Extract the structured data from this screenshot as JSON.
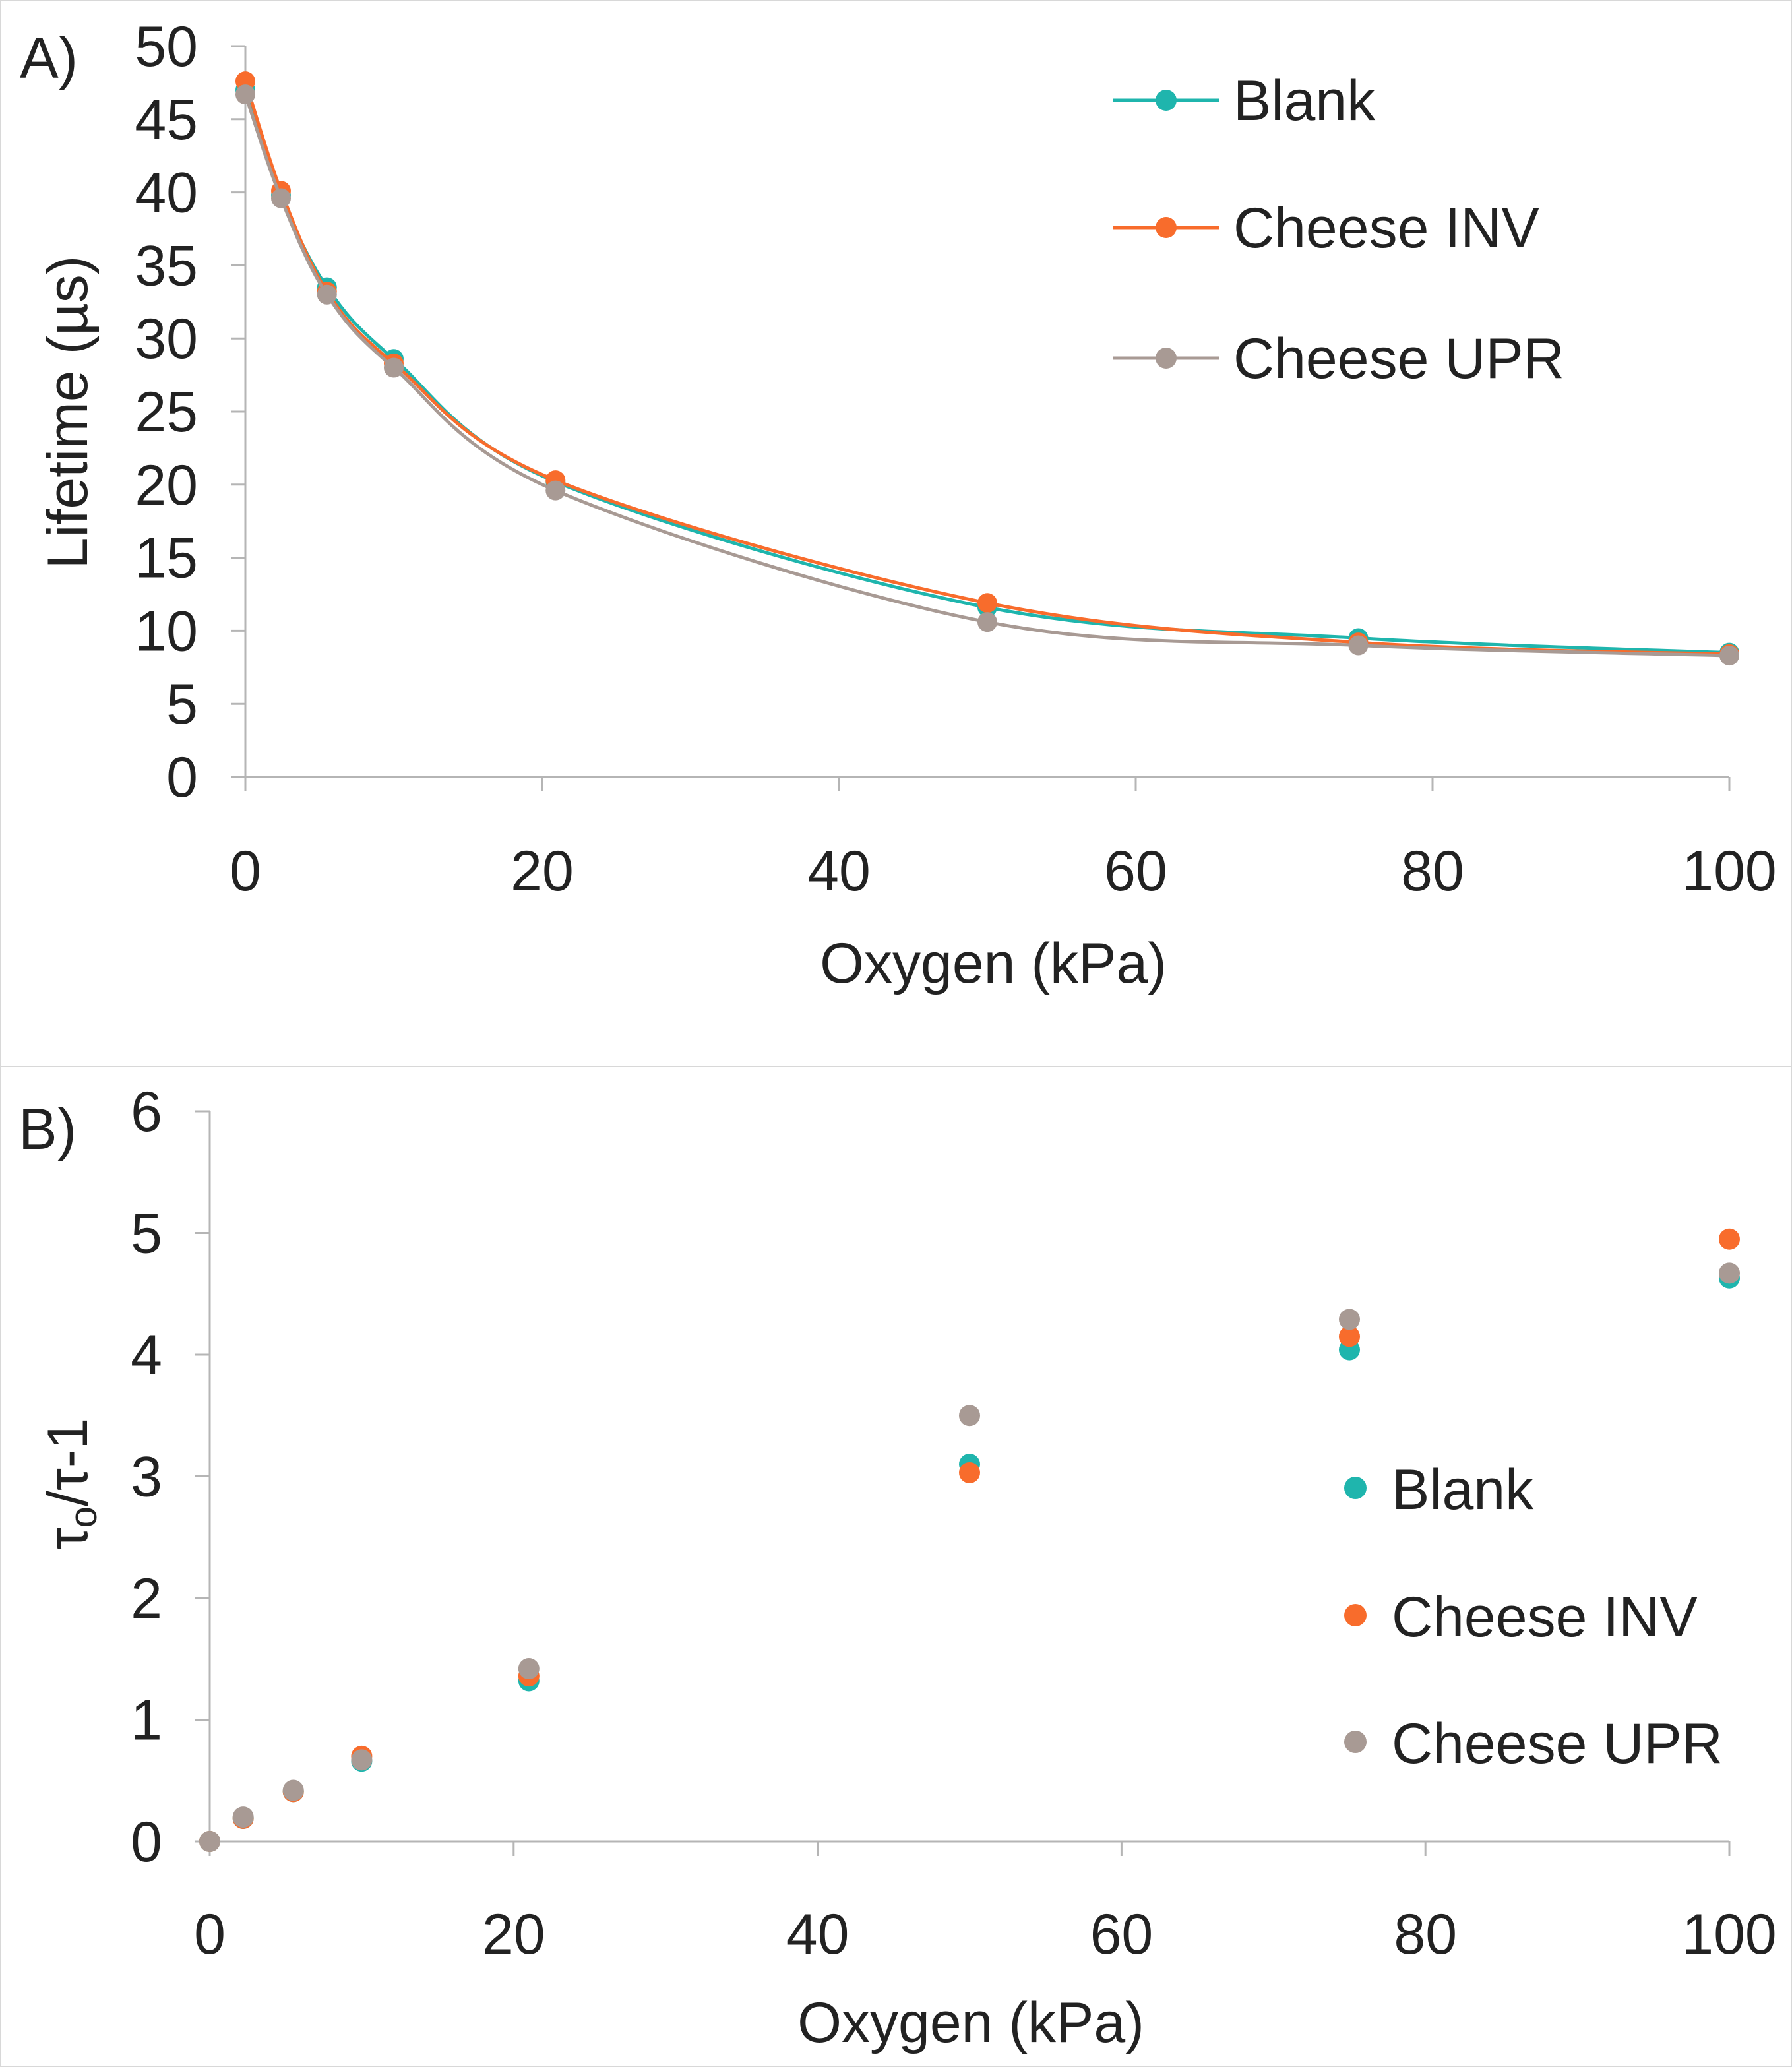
{
  "colors": {
    "blank": "#1fb5ad",
    "cheese_inv": "#f86c2c",
    "cheese_upr": "#a89a94",
    "axis": "#b5b5b5",
    "text": "#222222"
  },
  "chart_data": [
    {
      "panel_label": "A)",
      "type": "line",
      "xlabel": "Oxygen (kPa)",
      "ylabel": "Lifetime (µs)",
      "xlim": [
        0,
        100
      ],
      "ylim": [
        0,
        50
      ],
      "xticks": [
        "0",
        "20",
        "40",
        "60",
        "80",
        "100"
      ],
      "yticks": [
        "0",
        "5",
        "10",
        "15",
        "20",
        "25",
        "30",
        "35",
        "40",
        "45",
        "50"
      ],
      "legend_position": "top-right",
      "series": [
        {
          "name": "Blank",
          "color_key": "blank",
          "x": [
            0,
            2.4,
            5.5,
            10,
            20.9,
            50,
            75,
            100
          ],
          "y": [
            47.0,
            39.8,
            33.5,
            28.6,
            20.2,
            11.6,
            9.5,
            8.5
          ]
        },
        {
          "name": "Cheese INV",
          "color_key": "cheese_inv",
          "x": [
            0,
            2.4,
            5.5,
            10,
            20.9,
            50,
            75,
            100
          ],
          "y": [
            47.6,
            40.1,
            33.2,
            28.3,
            20.3,
            11.9,
            9.2,
            8.4
          ]
        },
        {
          "name": "Cheese UPR",
          "color_key": "cheese_upr",
          "x": [
            0,
            2.4,
            5.5,
            10,
            20.9,
            50,
            75,
            100
          ],
          "y": [
            46.7,
            39.6,
            33.0,
            28.0,
            19.6,
            10.6,
            9.0,
            8.3
          ]
        }
      ]
    },
    {
      "panel_label": "B)",
      "type": "scatter",
      "xlabel": "Oxygen (kPa)",
      "ylabel_main": "τ",
      "ylabel_sub": "o",
      "ylabel_rest": "/τ-1",
      "xlim": [
        0,
        100
      ],
      "ylim": [
        0,
        6
      ],
      "xticks": [
        "0",
        "20",
        "40",
        "60",
        "80",
        "100"
      ],
      "yticks": [
        "0",
        "1",
        "2",
        "3",
        "4",
        "5",
        "6"
      ],
      "legend_position": "right",
      "series": [
        {
          "name": "Blank",
          "color_key": "blank",
          "x": [
            0,
            2.2,
            5.5,
            10,
            21,
            50,
            75,
            100
          ],
          "y": [
            0.0,
            0.19,
            0.41,
            0.66,
            1.32,
            3.1,
            4.04,
            4.63
          ]
        },
        {
          "name": "Cheese INV",
          "color_key": "cheese_inv",
          "x": [
            0,
            2.2,
            5.5,
            10,
            21,
            50,
            75,
            100
          ],
          "y": [
            0.0,
            0.19,
            0.41,
            0.7,
            1.36,
            3.03,
            4.15,
            4.95
          ]
        },
        {
          "name": "Cheese UPR",
          "color_key": "cheese_upr",
          "x": [
            0,
            2.2,
            5.5,
            10,
            21,
            50,
            75,
            100
          ],
          "y": [
            0.0,
            0.2,
            0.42,
            0.67,
            1.42,
            3.5,
            4.29,
            4.67
          ]
        }
      ]
    }
  ]
}
